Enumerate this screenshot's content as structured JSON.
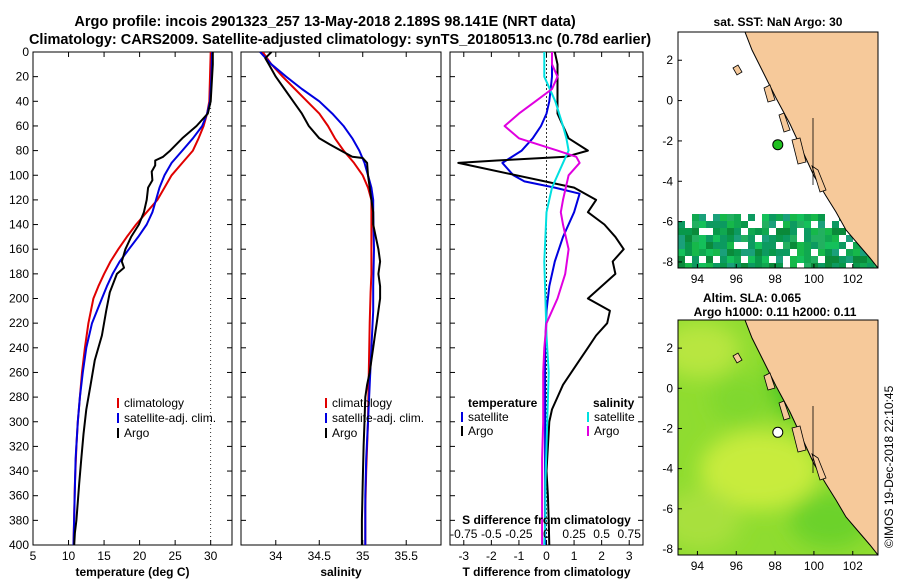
{
  "figure": {
    "title_line1": "Argo profile: incois 2901323_257 13-May-2018 2.189S 98.141E (NRT data)",
    "title_line2": "Climatology: CARS2009. Satellite-adjusted climatology: synTS_20180513.nc (0.78d earlier)",
    "watermark": "©IMOS 19-Dec-2018 22:10:45"
  },
  "colors": {
    "climatology": "#e00000",
    "satellite": "#0000e0",
    "argo": "#000000",
    "salinity_diff": "#e000e0",
    "salinity_satellite": "#00e0e0",
    "land": "#f6c99a",
    "coast": "#000000"
  },
  "chart_data": [
    {
      "id": "temperature",
      "type": "line",
      "xlabel": "temperature (deg C)",
      "ylabel": "",
      "xlim": [
        5,
        33
      ],
      "ylim": [
        400,
        0
      ],
      "xticks": [
        5,
        10,
        15,
        20,
        25,
        30
      ],
      "xtick_labels": [
        "5",
        "10",
        "15",
        "20",
        "25",
        "30"
      ],
      "yticks": [
        0,
        20,
        40,
        60,
        80,
        100,
        120,
        140,
        160,
        180,
        200,
        220,
        240,
        260,
        280,
        300,
        320,
        340,
        360,
        380,
        400
      ],
      "ytick_labels": [
        "0",
        "20",
        "40",
        "60",
        "80",
        "100",
        "120",
        "140",
        "160",
        "180",
        "200",
        "220",
        "240",
        "260",
        "280",
        "300",
        "320",
        "340",
        "360",
        "380",
        "400"
      ],
      "legend": {
        "position": "lower-center",
        "entries": [
          {
            "label": "climatology",
            "color": "#e00000"
          },
          {
            "label": "satellite-adj. clim.",
            "color": "#0000e0"
          },
          {
            "label": "Argo",
            "color": "#000000"
          }
        ]
      },
      "series": [
        {
          "name": "climatology",
          "color": "#e00000",
          "x": [
            30,
            29.9,
            29.8,
            29.5,
            29,
            28.3,
            27.5,
            26,
            24.5,
            23.5,
            22.5,
            21,
            19.5,
            18.2,
            17,
            15.9,
            15,
            14.2,
            13.5,
            12.8,
            12.3,
            11.9,
            11.6,
            11.3,
            11.1,
            10.9,
            10.7
          ],
          "y": [
            0,
            20,
            40,
            50,
            60,
            70,
            80,
            90,
            100,
            110,
            120,
            130,
            140,
            150,
            160,
            170,
            180,
            190,
            200,
            220,
            240,
            260,
            280,
            300,
            320,
            350,
            400
          ]
        },
        {
          "name": "satellite-adj. clim.",
          "color": "#0000e0",
          "x": [
            30.2,
            30.1,
            29.9,
            29.5,
            28.8,
            27.5,
            26,
            24.5,
            23.5,
            22.8,
            22.3,
            21.8,
            21,
            19.8,
            18.5,
            17.2,
            16.2,
            15.4,
            14.7,
            13.3,
            12.5,
            12,
            11.6,
            11.3,
            11,
            10.7
          ],
          "y": [
            0,
            20,
            40,
            50,
            60,
            70,
            80,
            90,
            100,
            110,
            120,
            130,
            140,
            150,
            160,
            170,
            180,
            190,
            200,
            220,
            240,
            260,
            280,
            300,
            330,
            400
          ]
        },
        {
          "name": "Argo",
          "color": "#000000",
          "x": [
            30.3,
            30.3,
            30.2,
            30.1,
            30,
            29.6,
            28,
            26,
            24.3,
            23.3,
            22.2,
            22.2,
            21.7,
            21.8,
            21.2,
            21,
            20.6,
            19.9,
            18.8,
            18,
            17.5,
            17.8,
            16.8,
            15.8,
            15.3,
            14.7,
            13.7,
            13.1,
            12.5,
            12.1,
            11.8,
            11.5,
            11.3,
            11.1,
            10.9,
            10.8
          ],
          "y": [
            0,
            10,
            20,
            30,
            40,
            50,
            60,
            70,
            80,
            85,
            88,
            92,
            97,
            104,
            110,
            120,
            130,
            140,
            150,
            160,
            170,
            175,
            180,
            195,
            210,
            230,
            250,
            270,
            290,
            310,
            330,
            350,
            365,
            380,
            390,
            400
          ]
        }
      ]
    },
    {
      "id": "salinity",
      "type": "line",
      "xlabel": "salinity",
      "ylabel": "",
      "xlim": [
        33.6,
        35.9
      ],
      "ylim": [
        400,
        0
      ],
      "xticks": [
        34,
        34.5,
        35,
        35.5
      ],
      "xtick_labels": [
        "34",
        "34.5",
        "35",
        "35.5"
      ],
      "legend": {
        "position": "lower-center",
        "entries": [
          {
            "label": "climatology",
            "color": "#e00000"
          },
          {
            "label": "satellite-adj. clim.",
            "color": "#0000e0"
          },
          {
            "label": "Argo",
            "color": "#000000"
          }
        ]
      },
      "series": [
        {
          "name": "climatology",
          "color": "#e00000",
          "x": [
            33.85,
            33.95,
            34.08,
            34.22,
            34.36,
            34.5,
            34.6,
            34.68,
            34.78,
            34.9,
            35.0,
            35.06,
            35.1,
            35.1,
            35.1,
            35.1,
            35.09,
            35.08,
            35.07,
            35.06,
            35.05,
            35.04,
            35.03,
            35.03
          ],
          "y": [
            0,
            10,
            20,
            30,
            40,
            50,
            60,
            70,
            80,
            90,
            100,
            110,
            120,
            140,
            160,
            180,
            195,
            220,
            260,
            300,
            320,
            340,
            370,
            400
          ]
        },
        {
          "name": "satellite-adj. clim.",
          "color": "#0000e0",
          "x": [
            33.82,
            33.95,
            34.12,
            34.3,
            34.5,
            34.65,
            34.78,
            34.88,
            34.96,
            35.02,
            35.06,
            35.1,
            35.12,
            35.12,
            35.13,
            35.12,
            35.12,
            35.1,
            35.08,
            35.06,
            35.04,
            35.03,
            35.03
          ],
          "y": [
            0,
            10,
            20,
            30,
            40,
            50,
            60,
            70,
            80,
            90,
            100,
            110,
            120,
            130,
            160,
            190,
            210,
            240,
            270,
            300,
            330,
            360,
            400
          ]
        },
        {
          "name": "Argo",
          "color": "#000000",
          "x": [
            33.95,
            33.88,
            33.92,
            34.0,
            34.1,
            34.2,
            34.3,
            34.38,
            34.5,
            34.62,
            34.75,
            34.88,
            35.0,
            35.05,
            35.06,
            35.08,
            35.1,
            35.12,
            35.12,
            35.15,
            35.18,
            35.2,
            35.18,
            35.2,
            35.2,
            35.18,
            35.16,
            35.14,
            35.12,
            35.1,
            35.08,
            35.05,
            35.03,
            35.02,
            35.01,
            35.0,
            34.99,
            34.99
          ],
          "y": [
            0,
            5,
            10,
            20,
            30,
            40,
            50,
            60,
            70,
            75,
            80,
            85,
            86,
            90,
            100,
            110,
            120,
            130,
            140,
            150,
            160,
            170,
            180,
            190,
            200,
            210,
            220,
            230,
            240,
            250,
            260,
            270,
            280,
            300,
            320,
            350,
            380,
            400
          ]
        }
      ]
    },
    {
      "id": "difference",
      "type": "line",
      "xlabel": "T difference from climatology",
      "xlabel_top": "S difference from climatology",
      "ylabel": "",
      "xlim": [
        -3.5,
        3.5
      ],
      "ylim": [
        400,
        0
      ],
      "xticks": [
        -3,
        -2,
        -1,
        0,
        1,
        2,
        3
      ],
      "xtick_labels": [
        "-3",
        "-2",
        "-1",
        "0",
        "1",
        "2",
        "3"
      ],
      "secondary_xlim": [
        -0.875,
        0.875
      ],
      "secondary_xticks": [
        -0.75,
        -0.5,
        -0.25,
        0,
        0.25,
        0.5,
        0.75
      ],
      "secondary_xtick_labels": [
        "-0.75",
        "-0.5",
        "-0.25",
        "0",
        "0.25",
        "0.5",
        "0.75"
      ],
      "legend": {
        "position": "lower-center",
        "groups": [
          {
            "heading": "temperature",
            "entries": [
              {
                "label": "satellite",
                "color": "#0000e0"
              },
              {
                "label": "Argo",
                "color": "#000000"
              }
            ]
          },
          {
            "heading": "salinity",
            "entries": [
              {
                "label": "satellite",
                "color": "#00e0e0"
              },
              {
                "label": "Argo",
                "color": "#e000e0"
              }
            ]
          }
        ]
      },
      "series": [
        {
          "name": "temperature satellite",
          "color": "#0000e0",
          "x": [
            0.2,
            0.2,
            0.1,
            0.0,
            -0.2,
            -0.5,
            -0.9,
            -1.6,
            -1.2,
            -0.8,
            0.3,
            1.2,
            1.0,
            0.6,
            0.3,
            0.1,
            0.0,
            -0.05,
            -0.05,
            -0.05,
            -0.05
          ],
          "y": [
            0,
            20,
            40,
            50,
            60,
            70,
            80,
            90,
            100,
            105,
            110,
            115,
            130,
            150,
            170,
            190,
            210,
            240,
            280,
            330,
            400
          ]
        },
        {
          "name": "temperature Argo",
          "color": "#000000",
          "x": [
            0.3,
            0.4,
            0.4,
            0.4,
            0.8,
            1.5,
            0.7,
            -1.8,
            -3.2,
            1.0,
            1.8,
            1.5,
            2.1,
            2.5,
            2.8,
            2.4,
            2.5,
            2.0,
            1.5,
            2.3,
            2.2,
            1.8,
            1.5,
            1.2,
            0.9,
            0.6,
            0.4,
            0.2,
            0.1,
            0.05,
            0.0,
            0.05,
            0.08,
            0.1
          ],
          "y": [
            0,
            10,
            30,
            50,
            70,
            80,
            85,
            88,
            90,
            110,
            120,
            130,
            140,
            150,
            160,
            170,
            180,
            190,
            200,
            210,
            220,
            230,
            240,
            250,
            260,
            270,
            280,
            290,
            300,
            320,
            340,
            360,
            380,
            400
          ]
        }
      ],
      "secondary_series": [
        {
          "name": "salinity satellite",
          "color": "#00e0e0",
          "x": [
            -0.02,
            -0.02,
            0.08,
            0.15,
            0.18,
            0.2,
            0.15,
            0.05,
            0.0,
            -0.01,
            -0.02,
            -0.01,
            0.0,
            0.02,
            0.01,
            0.0,
            -0.01,
            -0.01,
            -0.02
          ],
          "y": [
            0,
            20,
            40,
            60,
            70,
            80,
            90,
            110,
            130,
            150,
            170,
            200,
            230,
            260,
            290,
            320,
            350,
            380,
            400
          ]
        },
        {
          "name": "salinity Argo",
          "color": "#e000e0",
          "x": [
            0.05,
            0.05,
            0.1,
            0.05,
            -0.1,
            -0.25,
            -0.38,
            -0.25,
            0.1,
            0.27,
            0.3,
            0.2,
            0.15,
            0.13,
            0.15,
            0.2,
            0.17,
            0.1,
            0.0,
            -0.02,
            -0.03,
            -0.03,
            -0.03,
            -0.04,
            -0.04,
            -0.04
          ],
          "y": [
            0,
            10,
            20,
            30,
            40,
            50,
            60,
            70,
            80,
            85,
            90,
            100,
            120,
            130,
            140,
            160,
            180,
            200,
            220,
            240,
            260,
            280,
            300,
            330,
            360,
            400
          ]
        }
      ]
    }
  ],
  "maps": [
    {
      "id": "sst-map",
      "title": "sat. SST: NaN Argo: 30",
      "title_line2": "",
      "xlim": [
        93,
        103.3
      ],
      "ylim": [
        -8.3,
        3.4
      ],
      "xticks": [
        94,
        96,
        98,
        100,
        102
      ],
      "xtick_labels": [
        "94",
        "96",
        "98",
        "100",
        "102"
      ],
      "yticks": [
        2,
        0,
        -2,
        -4,
        -6,
        -8
      ],
      "ytick_labels": [
        "2",
        "0",
        "-2",
        "-4",
        "-6",
        "-8"
      ],
      "argo_position": {
        "lon": 98.141,
        "lat": -2.189
      },
      "marker_color": "#20c020"
    },
    {
      "id": "sla-map",
      "title": "Altim. SLA: 0.065",
      "title_line2": "Argo h1000: 0.11 h2000: 0.11",
      "xlim": [
        93,
        103.3
      ],
      "ylim": [
        -8.3,
        3.4
      ],
      "xticks": [
        94,
        96,
        98,
        100,
        102
      ],
      "xtick_labels": [
        "94",
        "96",
        "98",
        "100",
        "102"
      ],
      "yticks": [
        2,
        0,
        -2,
        -4,
        -6,
        -8
      ],
      "ytick_labels": [
        "2",
        "0",
        "-2",
        "-4",
        "-6",
        "-8"
      ],
      "argo_position": {
        "lon": 98.141,
        "lat": -2.189
      },
      "marker_color": "#ffffff"
    }
  ]
}
